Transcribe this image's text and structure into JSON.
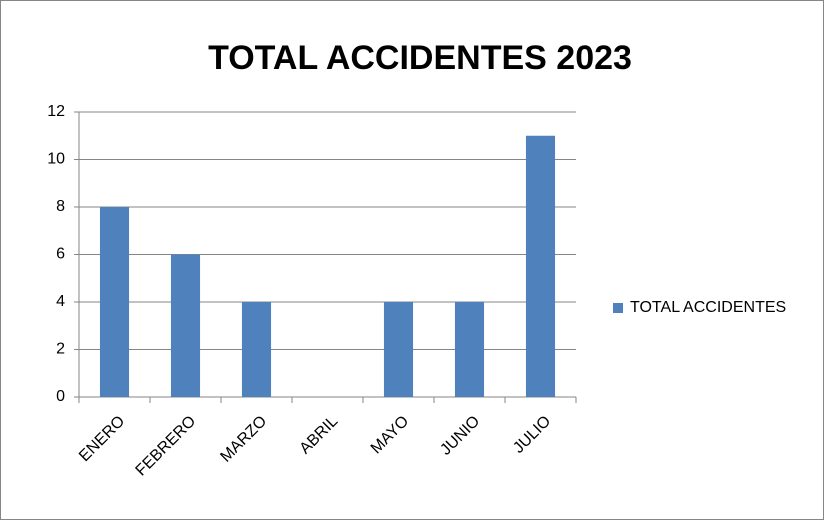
{
  "chart_data": {
    "type": "bar",
    "title": "TOTAL ACCIDENTES 2023",
    "categories": [
      "ENERO",
      "FEBRERO",
      "MARZO",
      "ABRIL",
      "MAYO",
      "JUNIO",
      "JULIO"
    ],
    "series": [
      {
        "name": "TOTAL ACCIDENTES",
        "color": "#4f81bd",
        "values": [
          8,
          6,
          4,
          0,
          4,
          4,
          11
        ]
      }
    ],
    "ylim": [
      0,
      12
    ],
    "yticks": [
      0,
      2,
      4,
      6,
      8,
      10,
      12
    ],
    "grid": true,
    "legend": "right"
  }
}
